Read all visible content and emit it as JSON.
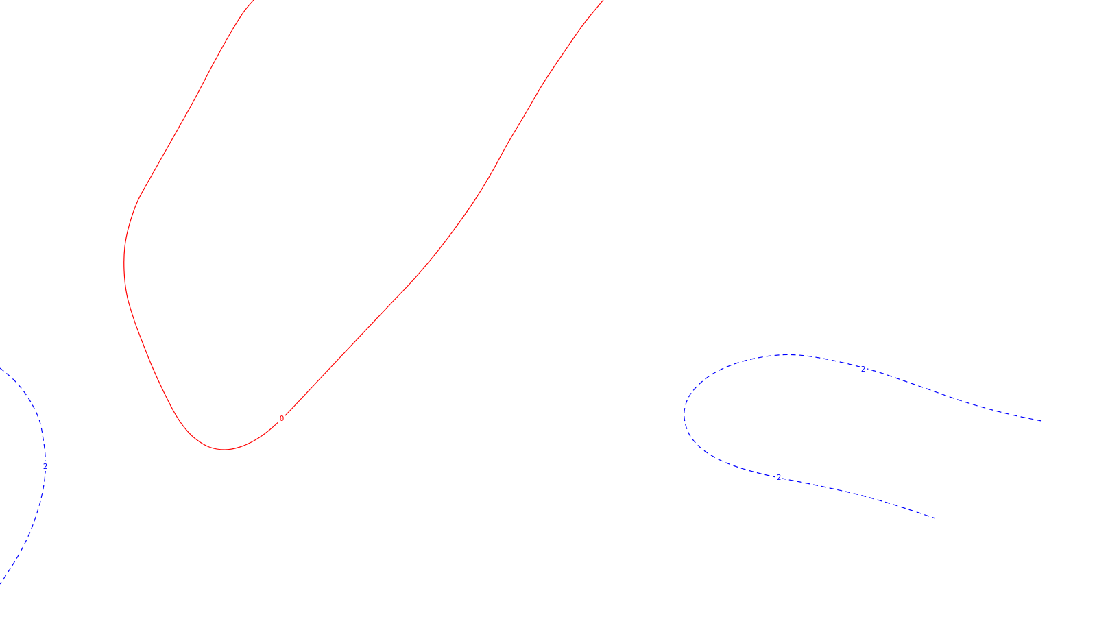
{
  "chart_data": {
    "type": "contour",
    "grid": false,
    "series": [
      {
        "level": 0,
        "label": "0",
        "color": "#ff0000",
        "style": "solid",
        "points": [
          [
            370,
            0
          ],
          [
            355,
            18
          ],
          [
            335,
            50
          ],
          [
            310,
            95
          ],
          [
            282,
            148
          ],
          [
            250,
            205
          ],
          [
            220,
            258
          ],
          [
            200,
            295
          ],
          [
            188,
            330
          ],
          [
            182,
            360
          ],
          [
            181,
            395
          ],
          [
            185,
            430
          ],
          [
            195,
            465
          ],
          [
            208,
            500
          ],
          [
            222,
            535
          ],
          [
            238,
            570
          ],
          [
            255,
            603
          ],
          [
            270,
            625
          ],
          [
            285,
            640
          ],
          [
            305,
            652
          ],
          [
            328,
            656
          ],
          [
            350,
            652
          ],
          [
            372,
            642
          ],
          [
            392,
            628
          ],
          [
            414,
            608
          ],
          [
            438,
            583
          ],
          [
            468,
            551
          ],
          [
            500,
            517
          ],
          [
            534,
            481
          ],
          [
            568,
            445
          ],
          [
            603,
            408
          ],
          [
            637,
            368
          ],
          [
            668,
            327
          ],
          [
            695,
            288
          ],
          [
            718,
            250
          ],
          [
            740,
            210
          ],
          [
            765,
            168
          ],
          [
            792,
            122
          ],
          [
            822,
            77
          ],
          [
            852,
            34
          ],
          [
            880,
            0
          ]
        ],
        "labels": [
          {
            "text": "0",
            "at": [
              411,
              610
            ]
          }
        ]
      },
      {
        "level": 2,
        "label": "2",
        "color": "#0000ff",
        "style": "dashed",
        "points": [
          [
            0,
            537
          ],
          [
            18,
            552
          ],
          [
            34,
            570
          ],
          [
            48,
            592
          ],
          [
            58,
            615
          ],
          [
            63,
            640
          ],
          [
            66,
            665
          ],
          [
            66,
            690
          ],
          [
            62,
            718
          ],
          [
            54,
            748
          ],
          [
            43,
            778
          ],
          [
            28,
            808
          ],
          [
            10,
            837
          ],
          [
            0,
            852
          ]
        ],
        "labels": [
          {
            "text": "2",
            "at": [
              66,
              680
            ]
          }
        ]
      },
      {
        "level": 2,
        "label": "2",
        "color": "#0000ff",
        "style": "dashed",
        "points": [
          [
            1519,
            614
          ],
          [
            1480,
            606
          ],
          [
            1440,
            596
          ],
          [
            1400,
            584
          ],
          [
            1360,
            570
          ],
          [
            1320,
            556
          ],
          [
            1282,
            543
          ],
          [
            1250,
            534
          ],
          [
            1225,
            528
          ],
          [
            1195,
            522
          ],
          [
            1165,
            518
          ],
          [
            1135,
            518
          ],
          [
            1100,
            523
          ],
          [
            1068,
            532
          ],
          [
            1040,
            545
          ],
          [
            1018,
            562
          ],
          [
            1004,
            580
          ],
          [
            998,
            600
          ],
          [
            1000,
            620
          ],
          [
            1008,
            638
          ],
          [
            1024,
            655
          ],
          [
            1046,
            669
          ],
          [
            1072,
            680
          ],
          [
            1102,
            689
          ],
          [
            1136,
            697
          ],
          [
            1172,
            704
          ],
          [
            1210,
            712
          ],
          [
            1250,
            721
          ],
          [
            1290,
            732
          ],
          [
            1328,
            744
          ],
          [
            1364,
            756
          ]
        ],
        "labels": [
          {
            "text": "2",
            "at": [
              1259,
              538
            ]
          },
          {
            "text": "2",
            "at": [
              1136,
              696
            ]
          }
        ]
      }
    ]
  }
}
